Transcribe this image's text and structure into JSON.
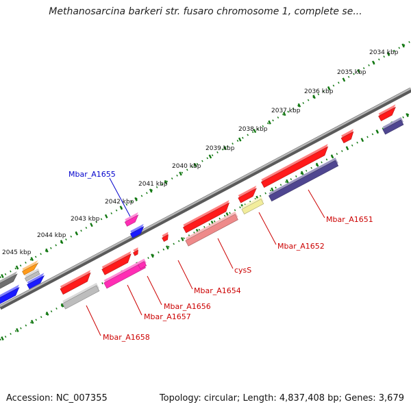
{
  "title": "Methanosarcina barkeri str. fusaro chromosome 1, complete se...",
  "footer": {
    "accession": "Accession: NC_007355",
    "summary": "Topology: circular; Length: 4,837,408 bp; Genes: 3,679"
  },
  "ticks": [
    "2034 kbp",
    "2035 kbp",
    "2036 kbp",
    "2037 kbp",
    "2038 kbp",
    "2039 kbp",
    "2040 kbp",
    "2041 kbp",
    "2042 kbp",
    "2043 kbp",
    "2044 kbp",
    "2045 kbp"
  ],
  "gene_labels": [
    {
      "text": "Mbar_A1655",
      "color": "#0000cc"
    },
    {
      "text": "Mbar_A1651",
      "color": "#cc0000"
    },
    {
      "text": "Mbar_A1652",
      "color": "#cc0000"
    },
    {
      "text": "cysS",
      "color": "#cc0000"
    },
    {
      "text": "Mbar_A1654",
      "color": "#cc0000"
    },
    {
      "text": "Mbar_A1656",
      "color": "#cc0000"
    },
    {
      "text": "Mbar_A1657",
      "color": "#cc0000"
    },
    {
      "text": "Mbar_A1658",
      "color": "#cc0000"
    }
  ],
  "colors": {
    "red": "#ff1a1a",
    "blue": "#1a1aff",
    "magenta": "#ff2db4",
    "navy": "#4f4690",
    "gray": "#bdbdbd",
    "darkgray": "#6e6e6e",
    "orange": "#ff9a1a",
    "salmon": "#ee8a8a",
    "yellow": "#f2ed9c",
    "backbone": "#8a8a8a",
    "ticks": "#117711"
  }
}
